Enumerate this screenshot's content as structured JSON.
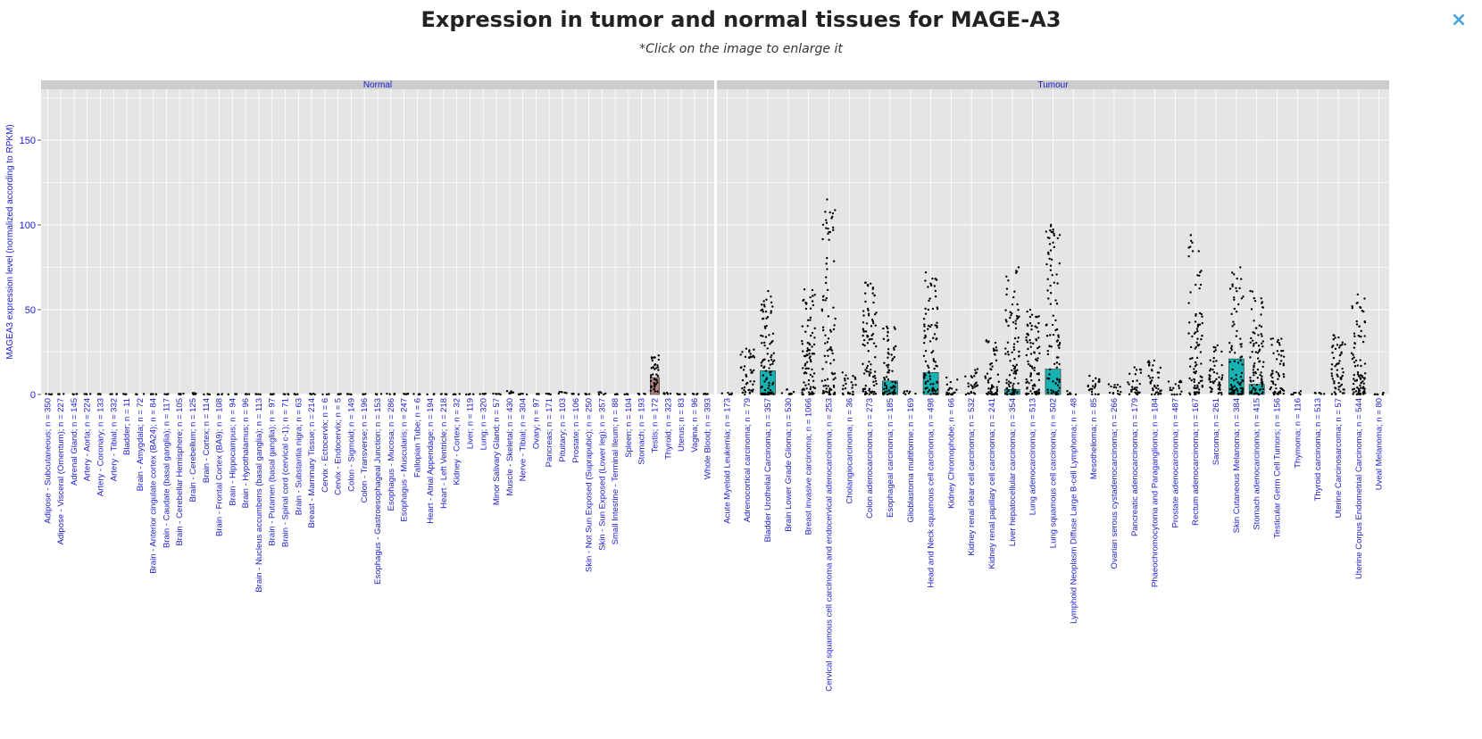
{
  "title": "Expression in tumor and normal tissues for MAGE-A3",
  "subtitle": "*Click on the image to enlarge it",
  "close_label": "×",
  "colors": {
    "panel_bg": "#e5e5e5",
    "strip_bg": "#cccccc",
    "text_blue": "#1a1acc",
    "bar_fill": "#19b2b2",
    "box_fill": "#b08080",
    "points": "#000000"
  },
  "chart_data": {
    "type": "bar",
    "ylabel": "MAGEA3 expression level (normalized according to RPKM)",
    "ylim": [
      0,
      180
    ],
    "yticks": [
      0,
      50,
      100,
      150
    ],
    "grid": true,
    "panels": [
      {
        "name": "Normal",
        "categories": [
          "Adipose - Subcutaneous; n = 350",
          "Adipose - Visceral (Omentum); n = 227",
          "Adrenal Gland; n = 145",
          "Artery - Aorta; n = 224",
          "Artery - Coronary; n = 133",
          "Artery - Tibial; n = 332",
          "Bladder; n = 11",
          "Brain - Amygdala; n = 72",
          "Brain - Anterior cingulate cortex (BA24); n = 84",
          "Brain - Caudate (basal ganglia); n = 117",
          "Brain - Cerebellar Hemisphere; n = 105",
          "Brain - Cerebellum; n = 125",
          "Brain - Cortex; n = 114",
          "Brain - Frontal Cortex (BA9); n = 108",
          "Brain - Hippocampus; n = 94",
          "Brain - Hypothalamus; n = 96",
          "Brain - Nucleus accumbens (basal ganglia); n = 113",
          "Brain - Putamen (basal ganglia); n = 97",
          "Brain - Spinal cord (cervical c-1); n = 71",
          "Brain - Substantia nigra; n = 63",
          "Breast - Mammary Tissue; n = 214",
          "Cervix - Ectocervix; n = 6",
          "Cervix - Endocervix; n = 5",
          "Colon - Sigmoid; n = 149",
          "Colon - Transverse; n = 196",
          "Esophagus - Gastroesophageal Junction; n = 153",
          "Esophagus - Mucosa; n = 286",
          "Esophagus - Muscularis; n = 247",
          "Fallopian Tube; n = 6",
          "Heart - Atrial Appendage; n = 194",
          "Heart - Left Ventricle; n = 218",
          "Kidney - Cortex; n = 32",
          "Liver; n = 119",
          "Lung; n = 320",
          "Minor Salivary Gland; n = 57",
          "Muscle - Skeletal; n = 430",
          "Nerve - Tibial; n = 304",
          "Ovary; n = 97",
          "Pancreas; n = 171",
          "Pituitary; n = 103",
          "Prostate; n = 106",
          "Skin - Not Sun Exposed (Suprapubic); n = 250",
          "Skin - Sun Exposed (Lower leg); n = 357",
          "Small Intestine - Terminal Ileum; n = 88",
          "Spleen; n = 104",
          "Stomach; n = 193",
          "Testis; n = 172",
          "Thyroid; n = 323",
          "Uterus; n = 83",
          "Vagina; n = 96",
          "Whole Blood; n = 393"
        ],
        "medians": [
          0,
          0,
          0,
          0,
          0,
          0,
          0,
          0,
          0,
          0,
          0,
          0,
          0,
          0,
          0,
          0,
          0,
          0,
          0,
          0,
          0,
          0,
          0,
          0,
          0,
          0,
          0,
          0,
          0,
          0,
          0,
          0,
          0,
          0,
          0,
          0,
          0,
          0,
          0,
          0,
          0,
          0,
          0,
          0,
          0,
          0,
          10,
          0,
          0,
          0,
          0
        ],
        "max": [
          0.3,
          0.3,
          0.3,
          0.3,
          0.3,
          0.3,
          0.3,
          0.3,
          0.3,
          0.3,
          0.5,
          0.8,
          0.3,
          0.3,
          0.3,
          0.3,
          0.3,
          0.3,
          0.3,
          0.3,
          0.5,
          0.3,
          0.3,
          0.3,
          0.3,
          0.3,
          0.5,
          0.5,
          0.3,
          0.3,
          0.3,
          0.3,
          0.3,
          0.5,
          0.5,
          2,
          0.5,
          0.3,
          0.5,
          1.5,
          0.5,
          0.5,
          1.5,
          0.3,
          0.3,
          0.5,
          23,
          1,
          0.5,
          0.5,
          0.5
        ]
      },
      {
        "name": "Tumour",
        "categories": [
          "Acute Myeloid Leukemia; n = 173",
          "Adrenocortical carcinoma; n = 79",
          "Bladder Urothelial Carcinoma; n = 357",
          "Brain Lower Grade Glioma; n = 530",
          "Breast invasive carcinoma; n = 1066",
          "Cervical squamous cell carcinoma and endocervical adenocarcinoma; n = 253",
          "Cholangiocarcinoma; n = 36",
          "Colon adenocarcinoma; n = 273",
          "Esophageal carcinoma; n = 185",
          "Glioblastoma multiforme; n = 169",
          "Head and Neck squamous cell carcinoma; n = 498",
          "Kidney Chromophobe; n = 66",
          "Kidney renal clear cell carcinoma; n = 532",
          "Kidney renal papillary cell carcinoma; n = 241",
          "Liver hepatocellular carcinoma; n = 354",
          "Lung adenocarcinoma; n = 513",
          "Lung squamous cell carcinoma; n = 502",
          "Lymphoid Neoplasm Diffuse Large B-cell Lymphoma; n = 48",
          "Mesothelioma; n = 85",
          "Ovarian serous cystadenocarcinoma; n = 266",
          "Pancreatic adenocarcinoma; n = 179",
          "Phaeochromocytoma and Paraganglioma; n = 184",
          "Prostate adenocarcinoma; n = 487",
          "Rectum adenocarcinoma; n = 167",
          "Sarcoma; n = 261",
          "Skin Cutaneous Melanoma; n = 384",
          "Stomach adenocarcinoma; n = 415",
          "Testicular Germ Cell Tumors; n = 156",
          "Thymoma; n = 116",
          "Thyroid carcinoma; n = 513",
          "Uterine Carcinosarcoma; n = 57",
          "Uterine Corpus Endometrial Carcinoma; n = 544",
          "Uveal Melanoma; n = 80"
        ],
        "medians": [
          0,
          0,
          14,
          0,
          0,
          0,
          0,
          0,
          8,
          0,
          13,
          0,
          0,
          0,
          3,
          0,
          15,
          0,
          0,
          0,
          0,
          0,
          0,
          0,
          0,
          21,
          6,
          0,
          0,
          0,
          0,
          0,
          0
        ],
        "max": [
          1,
          27,
          61,
          3,
          62,
          115,
          13,
          66,
          40,
          2,
          72,
          10,
          15,
          32,
          75,
          50,
          100,
          2,
          11,
          6,
          16,
          20,
          8,
          94,
          29,
          75,
          61,
          33,
          2,
          1,
          35,
          59,
          1
        ]
      }
    ]
  }
}
